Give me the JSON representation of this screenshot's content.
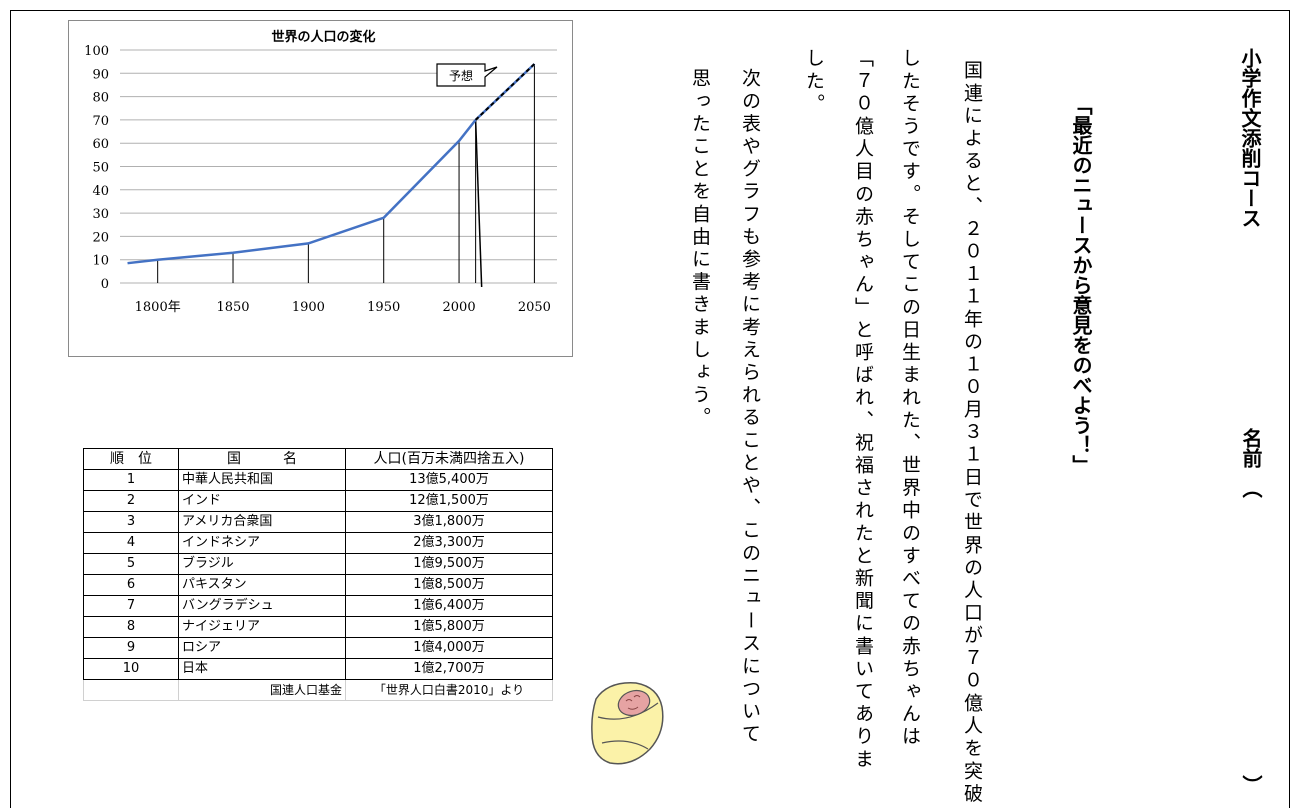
{
  "header": {
    "course": "小学作文添削コース",
    "name_label": "名前　（",
    "name_close": "）"
  },
  "title": "「最近のニュースから意見をのべよう！」",
  "body_columns": [
    "国連によると、２０１１年の１０月３１日で世界の人口が７０億人を突破",
    "したそうです。そしてこの日生まれた、世界中のすべての赤ちゃんは",
    "「７０億人目の赤ちゃん」と呼ばれ、祝福されたと新聞に書いてありま",
    "した。",
    "次の表やグラフも参考に考えられることや、このニュースについて",
    "思ったことを自由に書きましょう。"
  ],
  "chart_data": {
    "type": "line",
    "title": "世界の人口の変化",
    "xlabel": "",
    "ylabel": "",
    "ylim": [
      0,
      100
    ],
    "yticks": [
      0,
      10,
      20,
      30,
      40,
      50,
      60,
      70,
      80,
      90,
      100
    ],
    "xticks": [
      "1800年",
      "1850",
      "1900",
      "1950",
      "2000",
      "2050"
    ],
    "xtick_values": [
      1800,
      1850,
      1900,
      1950,
      2000,
      2050
    ],
    "xlim": [
      1775,
      2065
    ],
    "series": [
      {
        "values": [
          {
            "x": 1780,
            "y": 8.5
          },
          {
            "x": 1800,
            "y": 10
          },
          {
            "x": 1850,
            "y": 13
          },
          {
            "x": 1900,
            "y": 17
          },
          {
            "x": 1950,
            "y": 28
          },
          {
            "x": 2000,
            "y": 61
          },
          {
            "x": 2011,
            "y": 70
          }
        ]
      }
    ],
    "projection": [
      {
        "x": 2011,
        "y": 70
      },
      {
        "x": 2050,
        "y": 94
      }
    ],
    "drop_lines_x": [
      1800,
      1850,
      1900,
      1950,
      2000,
      2011,
      2050
    ],
    "annotation": "予想",
    "grid": true,
    "colors": {
      "line": "#4472c4",
      "projection": "#000000",
      "grid": "#b0b0b0"
    }
  },
  "table": {
    "headers": [
      "順　位",
      "国　　　名",
      "人口(百万未満四捨五入)"
    ],
    "rows": [
      [
        "1",
        "中華人民共和国",
        "13億5,400万"
      ],
      [
        "2",
        "インド",
        "12億1,500万"
      ],
      [
        "3",
        "アメリカ合衆国",
        "3億1,800万"
      ],
      [
        "4",
        "インドネシア",
        "2億3,300万"
      ],
      [
        "5",
        "ブラジル",
        "1億9,500万"
      ],
      [
        "6",
        "パキスタン",
        "1億8,500万"
      ],
      [
        "7",
        "バングラデシュ",
        "1億6,400万"
      ],
      [
        "8",
        "ナイジェリア",
        "1億5,800万"
      ],
      [
        "9",
        "ロシア",
        "1億4,000万"
      ],
      [
        "10",
        "日本",
        "1億2,700万"
      ]
    ],
    "source_org": "国連人口基金",
    "source_doc": "「世界人口白書2010」より"
  }
}
